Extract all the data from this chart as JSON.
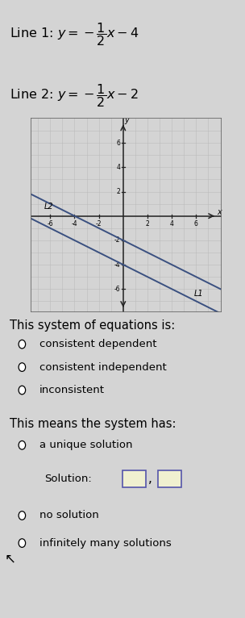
{
  "line1_slope": -0.5,
  "line1_intercept": -4,
  "line2_slope": -0.5,
  "line2_intercept": -2,
  "line1_color": "#3a5080",
  "line2_color": "#3a5080",
  "line1_label": "L1",
  "line2_label": "L2",
  "xmin": -7,
  "xmax": 7,
  "ymin": -7,
  "ymax": 7,
  "xticks": [
    -6,
    -4,
    -2,
    2,
    4,
    6
  ],
  "yticks": [
    -6,
    -4,
    -2,
    2,
    4,
    6
  ],
  "grid_color": "#bbbbbb",
  "axis_color": "#222222",
  "plot_bg_color": "#e4e4e4",
  "section1_text": "This system of equations is:",
  "option1a": "consistent dependent",
  "option1b": "consistent independent",
  "option1c": "inconsistent",
  "section2_text": "This means the system has:",
  "option2a": "a unique solution",
  "solution_label": "Solution:",
  "option2b": "no solution",
  "option2c": "infinitely many solutions",
  "body_bg": "#d4d4d4",
  "font_size_body": 9.5,
  "font_size_title": 11
}
